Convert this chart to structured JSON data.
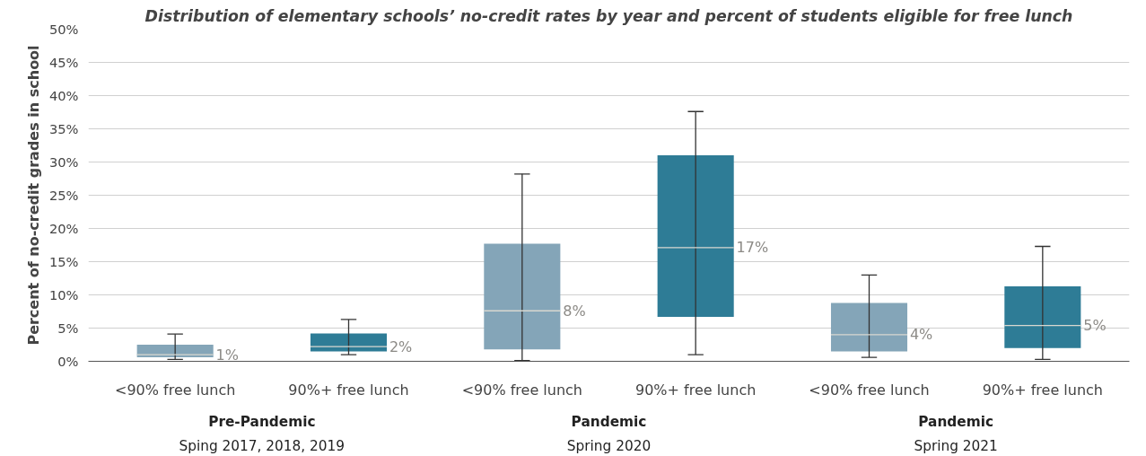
{
  "chart_data": {
    "type": "box",
    "title": "Distribution of elementary schools’ no-credit rates by year and percent of students eligible for free lunch",
    "ylabel": "Percent of no-credit grades in school",
    "categories": [
      "<90% free lunch",
      "90%+ free lunch",
      "<90% free lunch",
      "90%+ free lunch",
      "<90% free lunch",
      "90%+ free lunch"
    ],
    "series": [
      {
        "colors": [
          "#84a5b8",
          "#2e7c96",
          "#84a5b8",
          "#2e7c96",
          "#84a5b8",
          "#2e7c96"
        ],
        "boxes": [
          {
            "low": 0.3,
            "q1": 0.6,
            "median": 1.0,
            "q3": 2.5,
            "high": 4.1
          },
          {
            "low": 1.0,
            "q1": 1.5,
            "median": 2.2,
            "q3": 4.2,
            "high": 6.3
          },
          {
            "low": 0.1,
            "q1": 1.8,
            "median": 7.6,
            "q3": 17.7,
            "high": 28.2
          },
          {
            "low": 1.0,
            "q1": 6.7,
            "median": 17.1,
            "q3": 31.0,
            "high": 37.6
          },
          {
            "low": 0.6,
            "q1": 1.5,
            "median": 4.0,
            "q3": 8.8,
            "high": 13.0
          },
          {
            "low": 0.3,
            "q1": 2.0,
            "median": 5.4,
            "q3": 11.3,
            "high": 17.3
          }
        ],
        "value_labels": [
          "1%",
          "2%",
          "8%",
          "17%",
          "4%",
          "5%"
        ]
      }
    ],
    "annotations": [
      "Pre-Pandemic",
      "Sping 2017, 2018, 2019",
      "Pandemic",
      "Spring 2020",
      "Pandemic",
      "Spring 2021"
    ],
    "ylim": [
      0,
      50
    ],
    "yticks": [
      {
        "value": 0,
        "label": "0%"
      },
      {
        "value": 5,
        "label": "5%"
      },
      {
        "value": 10,
        "label": "10%"
      },
      {
        "value": 15,
        "label": "15%"
      },
      {
        "value": 20,
        "label": "20%"
      },
      {
        "value": 25,
        "label": "25%"
      },
      {
        "value": 30,
        "label": "30%"
      },
      {
        "value": 35,
        "label": "35%"
      },
      {
        "value": 40,
        "label": "40%"
      },
      {
        "value": 45,
        "label": "45%"
      },
      {
        "value": 50,
        "label": "50%"
      }
    ],
    "grid": "y"
  }
}
